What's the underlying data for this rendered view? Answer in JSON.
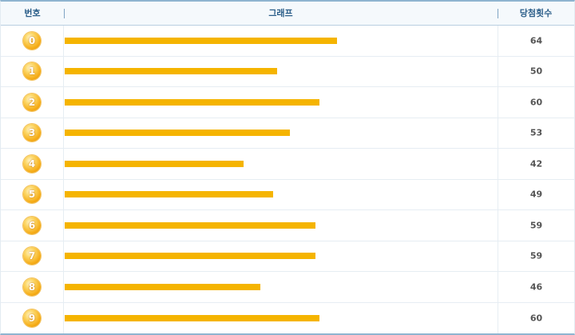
{
  "header": {
    "number_label": "번호",
    "graph_label": "그래프",
    "count_label": "당첨횟수"
  },
  "colors": {
    "bar": "#f5b400",
    "header_text": "#2c5f8a",
    "border": "#8fb4d0"
  },
  "chart_data": {
    "type": "bar",
    "orientation": "horizontal",
    "categories": [
      "0",
      "1",
      "2",
      "3",
      "4",
      "5",
      "6",
      "7",
      "8",
      "9"
    ],
    "values": [
      64,
      50,
      60,
      53,
      42,
      49,
      59,
      59,
      46,
      60
    ],
    "xlim": [
      0,
      102
    ],
    "grid": false,
    "legend": "none"
  }
}
